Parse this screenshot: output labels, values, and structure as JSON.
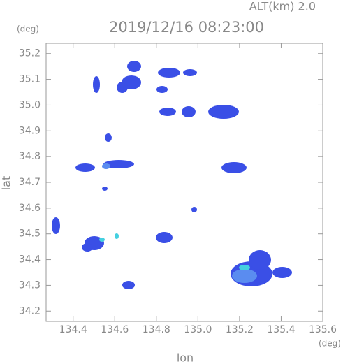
{
  "chart_data": {
    "type": "radar-map",
    "title": "2019/12/16 08:23:00",
    "altitude_label": "ALT(km)  2.0",
    "x_label": "lon",
    "y_label": "lat",
    "x_unit": "(deg)",
    "y_unit": "(deg)",
    "xlim": [
      134.27,
      135.6
    ],
    "xticks": [
      134.4,
      134.6,
      134.8,
      {
        "value": 135,
        "label": "135.0"
      },
      135.2,
      135.4,
      135.6
    ],
    "ylim": [
      34.16,
      35.24
    ],
    "yticks": [
      34.2,
      34.3,
      34.4,
      34.5,
      34.6,
      34.7,
      34.8,
      34.9,
      {
        "value": 35,
        "label": "35.0"
      },
      35.1,
      35.2
    ],
    "axis_color": "#999999"
  }
}
